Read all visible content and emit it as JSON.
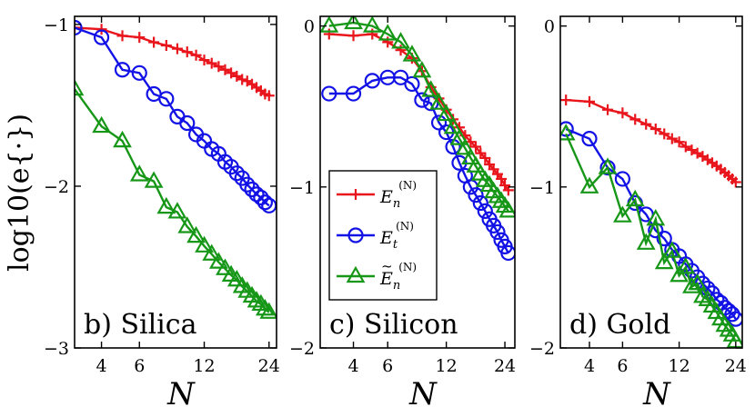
{
  "figure": {
    "ylabel": "log10(e{·})",
    "xlabel": "N"
  },
  "legend": {
    "entries": [
      {
        "series": "En",
        "base": "E",
        "sub": "n",
        "sup": "(N)",
        "tilde": false,
        "color": "#e8161c",
        "marker": "plus"
      },
      {
        "series": "Et",
        "base": "E",
        "sub": "t",
        "sup": "(N)",
        "tilde": false,
        "color": "#1212e6",
        "marker": "circle"
      },
      {
        "series": "En_tilde",
        "base": "E",
        "sub": "n",
        "sup": "(N)",
        "tilde": true,
        "color": "#179717",
        "marker": "triangle"
      }
    ]
  },
  "chart_data": [
    {
      "type": "line",
      "panel_label": "b) Silica",
      "xlabel": "N",
      "ylabel": "log10(e{·})",
      "xscale": "log",
      "xlim": [
        3,
        26
      ],
      "ylim": [
        -3,
        -0.95
      ],
      "xticks": [
        4,
        6,
        12,
        24
      ],
      "xtick_labels": [
        "4",
        "6",
        "12",
        "24"
      ],
      "yticks": [
        -1,
        -2,
        -3
      ],
      "ytick_labels": [
        "−1",
        "−2",
        "−3"
      ],
      "series": [
        {
          "name": "En",
          "x": [
            3,
            4,
            5,
            6,
            7,
            8,
            9,
            10,
            11,
            12,
            13,
            14,
            15,
            16,
            17,
            18,
            19,
            20,
            21,
            22,
            23,
            24
          ],
          "y": [
            -1.02,
            -1.03,
            -1.07,
            -1.08,
            -1.11,
            -1.13,
            -1.15,
            -1.17,
            -1.19,
            -1.22,
            -1.24,
            -1.26,
            -1.28,
            -1.3,
            -1.32,
            -1.34,
            -1.35,
            -1.37,
            -1.39,
            -1.41,
            -1.43,
            -1.44
          ]
        },
        {
          "name": "Et",
          "x": [
            3,
            4,
            5,
            6,
            7,
            8,
            9,
            10,
            11,
            12,
            13,
            14,
            15,
            16,
            17,
            18,
            19,
            20,
            21,
            22,
            23,
            24
          ],
          "y": [
            -1.02,
            -1.08,
            -1.28,
            -1.3,
            -1.43,
            -1.46,
            -1.57,
            -1.61,
            -1.68,
            -1.72,
            -1.77,
            -1.8,
            -1.85,
            -1.88,
            -1.92,
            -1.95,
            -1.99,
            -2.02,
            -2.05,
            -2.07,
            -2.1,
            -2.12
          ]
        },
        {
          "name": "En_tilde",
          "x": [
            3,
            4,
            5,
            6,
            7,
            8,
            9,
            10,
            11,
            12,
            13,
            14,
            15,
            16,
            17,
            18,
            19,
            20,
            21,
            22,
            23,
            24
          ],
          "y": [
            -1.4,
            -1.63,
            -1.72,
            -1.93,
            -1.97,
            -2.13,
            -2.16,
            -2.25,
            -2.31,
            -2.37,
            -2.42,
            -2.47,
            -2.51,
            -2.55,
            -2.58,
            -2.62,
            -2.65,
            -2.68,
            -2.71,
            -2.73,
            -2.76,
            -2.78
          ]
        }
      ]
    },
    {
      "type": "line",
      "panel_label": "c) Silicon",
      "xlabel": "N",
      "ylabel": "",
      "xscale": "log",
      "xlim": [
        2.7,
        27
      ],
      "ylim": [
        -2,
        0.06
      ],
      "xticks": [
        4,
        6,
        12,
        24
      ],
      "xtick_labels": [
        "4",
        "6",
        "12",
        "24"
      ],
      "yticks": [
        0,
        -1,
        -2
      ],
      "ytick_labels": [
        "0",
        "−1",
        "−2"
      ],
      "series": [
        {
          "name": "En",
          "x": [
            3,
            4,
            5,
            6,
            7,
            8,
            9,
            10,
            11,
            12,
            13,
            14,
            15,
            16,
            17,
            18,
            19,
            20,
            21,
            22,
            23,
            24,
            25
          ],
          "y": [
            -0.05,
            -0.06,
            -0.05,
            -0.1,
            -0.15,
            -0.2,
            -0.28,
            -0.38,
            -0.45,
            -0.52,
            -0.58,
            -0.63,
            -0.68,
            -0.72,
            -0.75,
            -0.79,
            -0.82,
            -0.86,
            -0.89,
            -0.92,
            -0.95,
            -0.99,
            -1.02
          ]
        },
        {
          "name": "Et",
          "x": [
            3,
            4,
            5,
            6,
            7,
            8,
            9,
            10,
            11,
            12,
            13,
            14,
            15,
            16,
            17,
            18,
            19,
            20,
            21,
            22,
            23,
            24,
            25
          ],
          "y": [
            -0.42,
            -0.42,
            -0.34,
            -0.32,
            -0.32,
            -0.36,
            -0.46,
            -0.48,
            -0.6,
            -0.66,
            -0.75,
            -0.85,
            -0.93,
            -1.0,
            -1.05,
            -1.1,
            -1.15,
            -1.2,
            -1.24,
            -1.28,
            -1.33,
            -1.37,
            -1.41
          ]
        },
        {
          "name": "En_tilde",
          "x": [
            3,
            4,
            5,
            6,
            7,
            8,
            9,
            10,
            11,
            12,
            13,
            14,
            15,
            16,
            17,
            18,
            19,
            20,
            21,
            22,
            23,
            24,
            25
          ],
          "y": [
            0.0,
            0.02,
            0.0,
            -0.05,
            -0.1,
            -0.18,
            -0.28,
            -0.4,
            -0.48,
            -0.55,
            -0.63,
            -0.7,
            -0.76,
            -0.82,
            -0.87,
            -0.92,
            -0.96,
            -0.99,
            -1.03,
            -1.06,
            -1.09,
            -1.12,
            -1.15
          ]
        }
      ]
    },
    {
      "type": "line",
      "panel_label": "d) Gold",
      "xlabel": "N",
      "ylabel": "",
      "xscale": "log",
      "xlim": [
        2.8,
        26
      ],
      "ylim": [
        -2,
        0.06
      ],
      "xticks": [
        4,
        6,
        12,
        24
      ],
      "xtick_labels": [
        "4",
        "6",
        "12",
        "24"
      ],
      "yticks": [
        0,
        -1,
        -2
      ],
      "ytick_labels": [
        "0",
        "−1",
        "−2"
      ],
      "series": [
        {
          "name": "En",
          "x": [
            3,
            4,
            5,
            6,
            7,
            8,
            9,
            10,
            11,
            12,
            13,
            14,
            15,
            16,
            17,
            18,
            19,
            20,
            21,
            22,
            23,
            24
          ],
          "y": [
            -0.46,
            -0.47,
            -0.52,
            -0.54,
            -0.58,
            -0.61,
            -0.64,
            -0.67,
            -0.7,
            -0.72,
            -0.75,
            -0.77,
            -0.79,
            -0.81,
            -0.83,
            -0.85,
            -0.87,
            -0.89,
            -0.91,
            -0.93,
            -0.95,
            -0.97
          ]
        },
        {
          "name": "Et",
          "x": [
            3,
            4,
            5,
            6,
            7,
            8,
            9,
            10,
            11,
            12,
            13,
            14,
            15,
            16,
            17,
            18,
            19,
            20,
            21,
            22,
            23,
            24
          ],
          "y": [
            -0.64,
            -0.7,
            -0.88,
            -0.95,
            -1.1,
            -1.17,
            -1.27,
            -1.32,
            -1.39,
            -1.43,
            -1.48,
            -1.52,
            -1.56,
            -1.6,
            -1.63,
            -1.66,
            -1.7,
            -1.72,
            -1.75,
            -1.77,
            -1.79,
            -1.82
          ]
        },
        {
          "name": "En_tilde",
          "x": [
            3,
            4,
            5,
            6,
            7,
            8,
            9,
            10,
            11,
            12,
            13,
            14,
            15,
            16,
            17,
            18,
            19,
            20,
            21,
            22,
            23,
            24
          ],
          "y": [
            -0.67,
            -1.0,
            -0.88,
            -1.18,
            -1.08,
            -1.35,
            -1.2,
            -1.47,
            -1.4,
            -1.55,
            -1.5,
            -1.62,
            -1.6,
            -1.68,
            -1.7,
            -1.74,
            -1.78,
            -1.82,
            -1.86,
            -1.89,
            -1.92,
            -1.96
          ]
        }
      ]
    }
  ]
}
